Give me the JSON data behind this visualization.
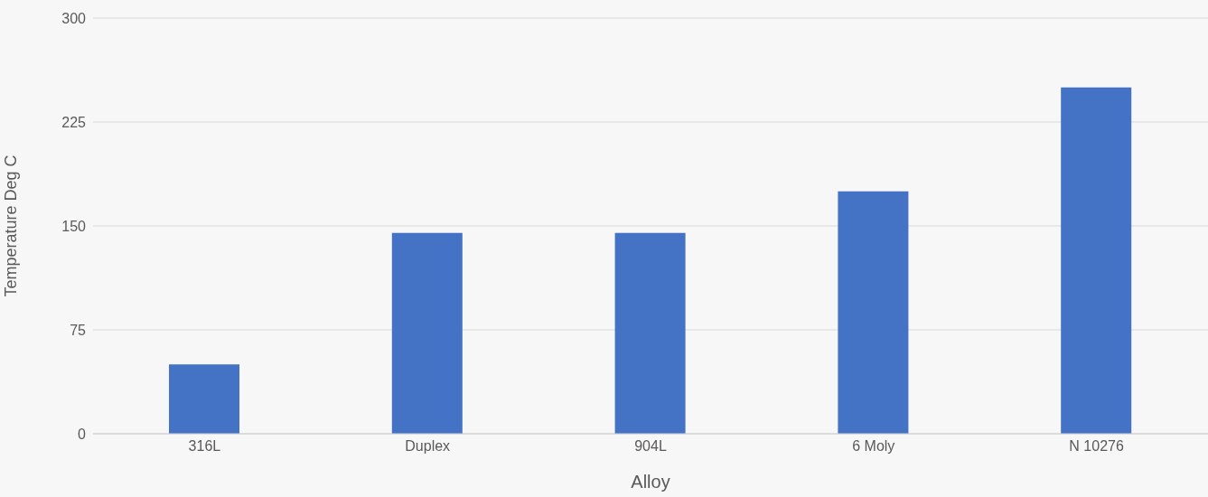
{
  "chart_data": {
    "type": "bar",
    "categories": [
      "316L",
      "Duplex",
      "904L",
      "6 Moly",
      "N 10276"
    ],
    "values": [
      50,
      145,
      145,
      175,
      250
    ],
    "color": "#4472c4",
    "xlabel": "Alloy",
    "ylabel": "Temperature Deg C",
    "ylim": [
      0,
      300
    ],
    "yticks": [
      0,
      75,
      150,
      225,
      300
    ],
    "grid": "y"
  }
}
